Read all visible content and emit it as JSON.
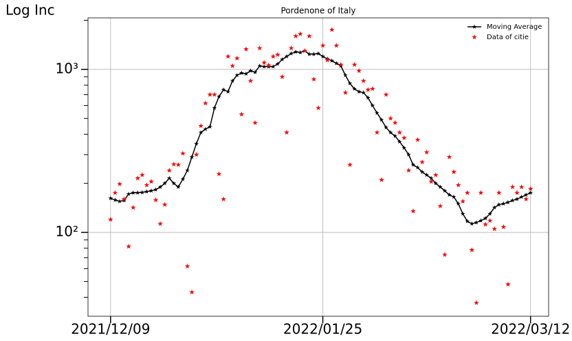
{
  "chart_data": {
    "type": "line",
    "title": "Pordenone of Italy",
    "ylabel": "Log Inc",
    "yscale": "log",
    "grid": true,
    "legend": "upper right",
    "x": [
      "2021/12/09",
      "2021/12/10",
      "2021/12/11",
      "2021/12/12",
      "2021/12/13",
      "2021/12/14",
      "2021/12/15",
      "2021/12/16",
      "2021/12/17",
      "2021/12/18",
      "2021/12/19",
      "2021/12/20",
      "2021/12/21",
      "2021/12/22",
      "2021/12/23",
      "2021/12/24",
      "2021/12/25",
      "2021/12/26",
      "2021/12/27",
      "2021/12/28",
      "2021/12/29",
      "2021/12/30",
      "2021/12/31",
      "2022/01/01",
      "2022/01/02",
      "2022/01/03",
      "2022/01/04",
      "2022/01/05",
      "2022/01/06",
      "2022/01/07",
      "2022/01/08",
      "2022/01/09",
      "2022/01/10",
      "2022/01/11",
      "2022/01/12",
      "2022/01/13",
      "2022/01/14",
      "2022/01/15",
      "2022/01/16",
      "2022/01/17",
      "2022/01/18",
      "2022/01/19",
      "2022/01/20",
      "2022/01/21",
      "2022/01/22",
      "2022/01/23",
      "2022/01/24",
      "2022/01/25",
      "2022/01/26",
      "2022/01/27",
      "2022/01/28",
      "2022/01/29",
      "2022/01/30",
      "2022/01/31",
      "2022/02/01",
      "2022/02/02",
      "2022/02/03",
      "2022/02/04",
      "2022/02/05",
      "2022/02/06",
      "2022/02/07",
      "2022/02/08",
      "2022/02/09",
      "2022/02/10",
      "2022/02/11",
      "2022/02/12",
      "2022/02/13",
      "2022/02/14",
      "2022/02/15",
      "2022/02/16",
      "2022/02/17",
      "2022/02/18",
      "2022/02/19",
      "2022/02/20",
      "2022/02/21",
      "2022/02/22",
      "2022/02/23",
      "2022/02/24",
      "2022/02/25",
      "2022/02/26",
      "2022/02/27",
      "2022/02/28",
      "2022/03/01",
      "2022/03/02",
      "2022/03/03",
      "2022/03/04",
      "2022/03/05",
      "2022/03/06",
      "2022/03/07",
      "2022/03/08",
      "2022/03/09",
      "2022/03/10",
      "2022/03/11",
      "2022/03/12"
    ],
    "xlim": [
      "2021/12/04",
      "2022/03/16"
    ],
    "xticks": [
      "2021/12/09",
      "2022/01/25",
      "2022/03/12"
    ],
    "ylim": [
      30.6,
      2070
    ],
    "yticks": [
      {
        "value": 100,
        "label": "10²"
      },
      {
        "value": 1000,
        "label": "10³"
      }
    ],
    "yminorticks": [
      40,
      50,
      60,
      70,
      80,
      90,
      200,
      300,
      400,
      500,
      600,
      700,
      800,
      900,
      2000
    ],
    "series": [
      {
        "name": "Moving Average",
        "color": "#000000",
        "style": "line",
        "values": [
          162,
          158,
          155,
          157,
          172,
          175,
          175,
          176,
          178,
          180,
          183,
          190,
          200,
          215,
          200,
          190,
          212,
          240,
          290,
          350,
          410,
          430,
          445,
          580,
          680,
          750,
          730,
          850,
          920,
          950,
          940,
          980,
          960,
          1050,
          1040,
          1040,
          1040,
          1080,
          1150,
          1200,
          1250,
          1280,
          1270,
          1300,
          1240,
          1240,
          1250,
          1200,
          1160,
          1130,
          1090,
          1050,
          920,
          820,
          760,
          730,
          720,
          670,
          600,
          540,
          490,
          440,
          410,
          390,
          360,
          330,
          300,
          260,
          250,
          235,
          225,
          215,
          200,
          190,
          180,
          170,
          165,
          150,
          130,
          117,
          113,
          115,
          118,
          122,
          130,
          142,
          148,
          150,
          153,
          157,
          160,
          165,
          170,
          175
        ]
      },
      {
        "name": "Data of citie",
        "color": "#ff0000",
        "style": "marker",
        "values": [
          120,
          175,
          198,
          160,
          82,
          142,
          215,
          225,
          195,
          205,
          158,
          113,
          148,
          240,
          262,
          260,
          305,
          62,
          43,
          300,
          450,
          620,
          700,
          700,
          228,
          160,
          1200,
          1050,
          1170,
          530,
          1330,
          850,
          470,
          1350,
          1100,
          1060,
          1200,
          1230,
          900,
          410,
          1350,
          1600,
          1650,
          1300,
          1600,
          870,
          580,
          1400,
          1140,
          1750,
          1400,
          1070,
          720,
          260,
          1070,
          980,
          850,
          750,
          760,
          410,
          210,
          700,
          500,
          470,
          410,
          380,
          240,
          135,
          370,
          270,
          310,
          205,
          225,
          145,
          73,
          290,
          235,
          195,
          155,
          175,
          78,
          37,
          175,
          112,
          118,
          105,
          175,
          108,
          48,
          190,
          175,
          190,
          160,
          185
        ]
      }
    ]
  }
}
